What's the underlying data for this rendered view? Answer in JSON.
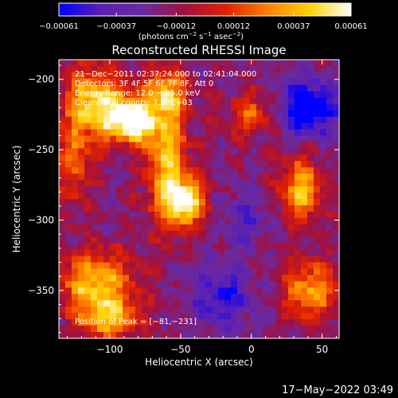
{
  "chart_data": {
    "type": "heatmap",
    "title": "Reconstructed RHESSI Image",
    "xlabel": "Heliocentric X (arcsec)",
    "ylabel": "Heliocentric Y (arcsec)",
    "xlim": [
      -136,
      62
    ],
    "ylim": [
      -384,
      -186
    ],
    "x_ticks": [
      -100,
      -50,
      0,
      50
    ],
    "x_tick_labels": [
      "−100",
      "−50",
      "0",
      "50"
    ],
    "y_ticks": [
      -200,
      -250,
      -300,
      -350
    ],
    "y_tick_labels": [
      "−200",
      "−250",
      "−300",
      "−350"
    ],
    "colorbar": {
      "ticks": [
        -0.00061,
        -0.00037,
        -0.00012,
        0.00012,
        0.00037,
        0.00061
      ],
      "tick_labels": [
        "−0.00061",
        "−0.00037",
        "−0.00012",
        "0.00012",
        "0.00037",
        "0.00061"
      ],
      "unit_main": "(photons cm",
      "unit_exp1": "−2",
      "unit_mid1": " s",
      "unit_exp2": "−1",
      "unit_mid2": " asec",
      "unit_exp3": "−2",
      "unit_end": ")",
      "colors": [
        "#0000ff",
        "#5a1fb4",
        "#6a2aa0",
        "#a01040",
        "#e02000",
        "#ff8000",
        "#ffd000",
        "#ffffff"
      ]
    },
    "annotations": [
      "21−Dec−2011 02:37:24.000 to 02:41:04.000",
      "Detectors: 3F 4F 5F 6F 7F 8F, Att 0",
      "Energy Range: 12.0 − 25.0 keV",
      "Clean     Total counts: 7.37E+03"
    ],
    "peak_label": "Position of Peak = [−81,−231]",
    "peak": [
      -81,
      -231
    ],
    "sources": [
      {
        "x": -81,
        "y": -231,
        "amp": 1.0,
        "sx": 8,
        "sy": 8
      },
      {
        "x": -95,
        "y": -225,
        "amp": 0.7,
        "sx": 14,
        "sy": 14
      },
      {
        "x": -115,
        "y": -215,
        "amp": 0.6,
        "sx": 14,
        "sy": 18
      },
      {
        "x": -60,
        "y": -255,
        "amp": 0.75,
        "sx": 10,
        "sy": 30
      },
      {
        "x": -47,
        "y": -287,
        "amp": 0.9,
        "sx": 10,
        "sy": 12
      },
      {
        "x": -60,
        "y": -210,
        "amp": 0.6,
        "sx": 10,
        "sy": 12
      },
      {
        "x": -110,
        "y": -345,
        "amp": 0.75,
        "sx": 18,
        "sy": 16
      },
      {
        "x": -100,
        "y": -370,
        "amp": 0.6,
        "sx": 15,
        "sy": 10
      },
      {
        "x": -125,
        "y": -260,
        "amp": 0.45,
        "sx": 8,
        "sy": 20
      },
      {
        "x": 35,
        "y": -278,
        "amp": 0.75,
        "sx": 10,
        "sy": 16
      },
      {
        "x": 42,
        "y": -350,
        "amp": 0.65,
        "sx": 14,
        "sy": 14
      },
      {
        "x": 0,
        "y": -225,
        "amp": 0.45,
        "sx": 12,
        "sy": 10
      },
      {
        "x": 40,
        "y": -220,
        "amp": -0.8,
        "sx": 14,
        "sy": 14
      },
      {
        "x": -20,
        "y": -355,
        "amp": -0.45,
        "sx": 16,
        "sy": 16
      },
      {
        "x": -5,
        "y": -300,
        "amp": -0.3,
        "sx": 12,
        "sy": 14
      }
    ]
  },
  "footer": {
    "timestamp": "17−May−2022 03:49"
  }
}
